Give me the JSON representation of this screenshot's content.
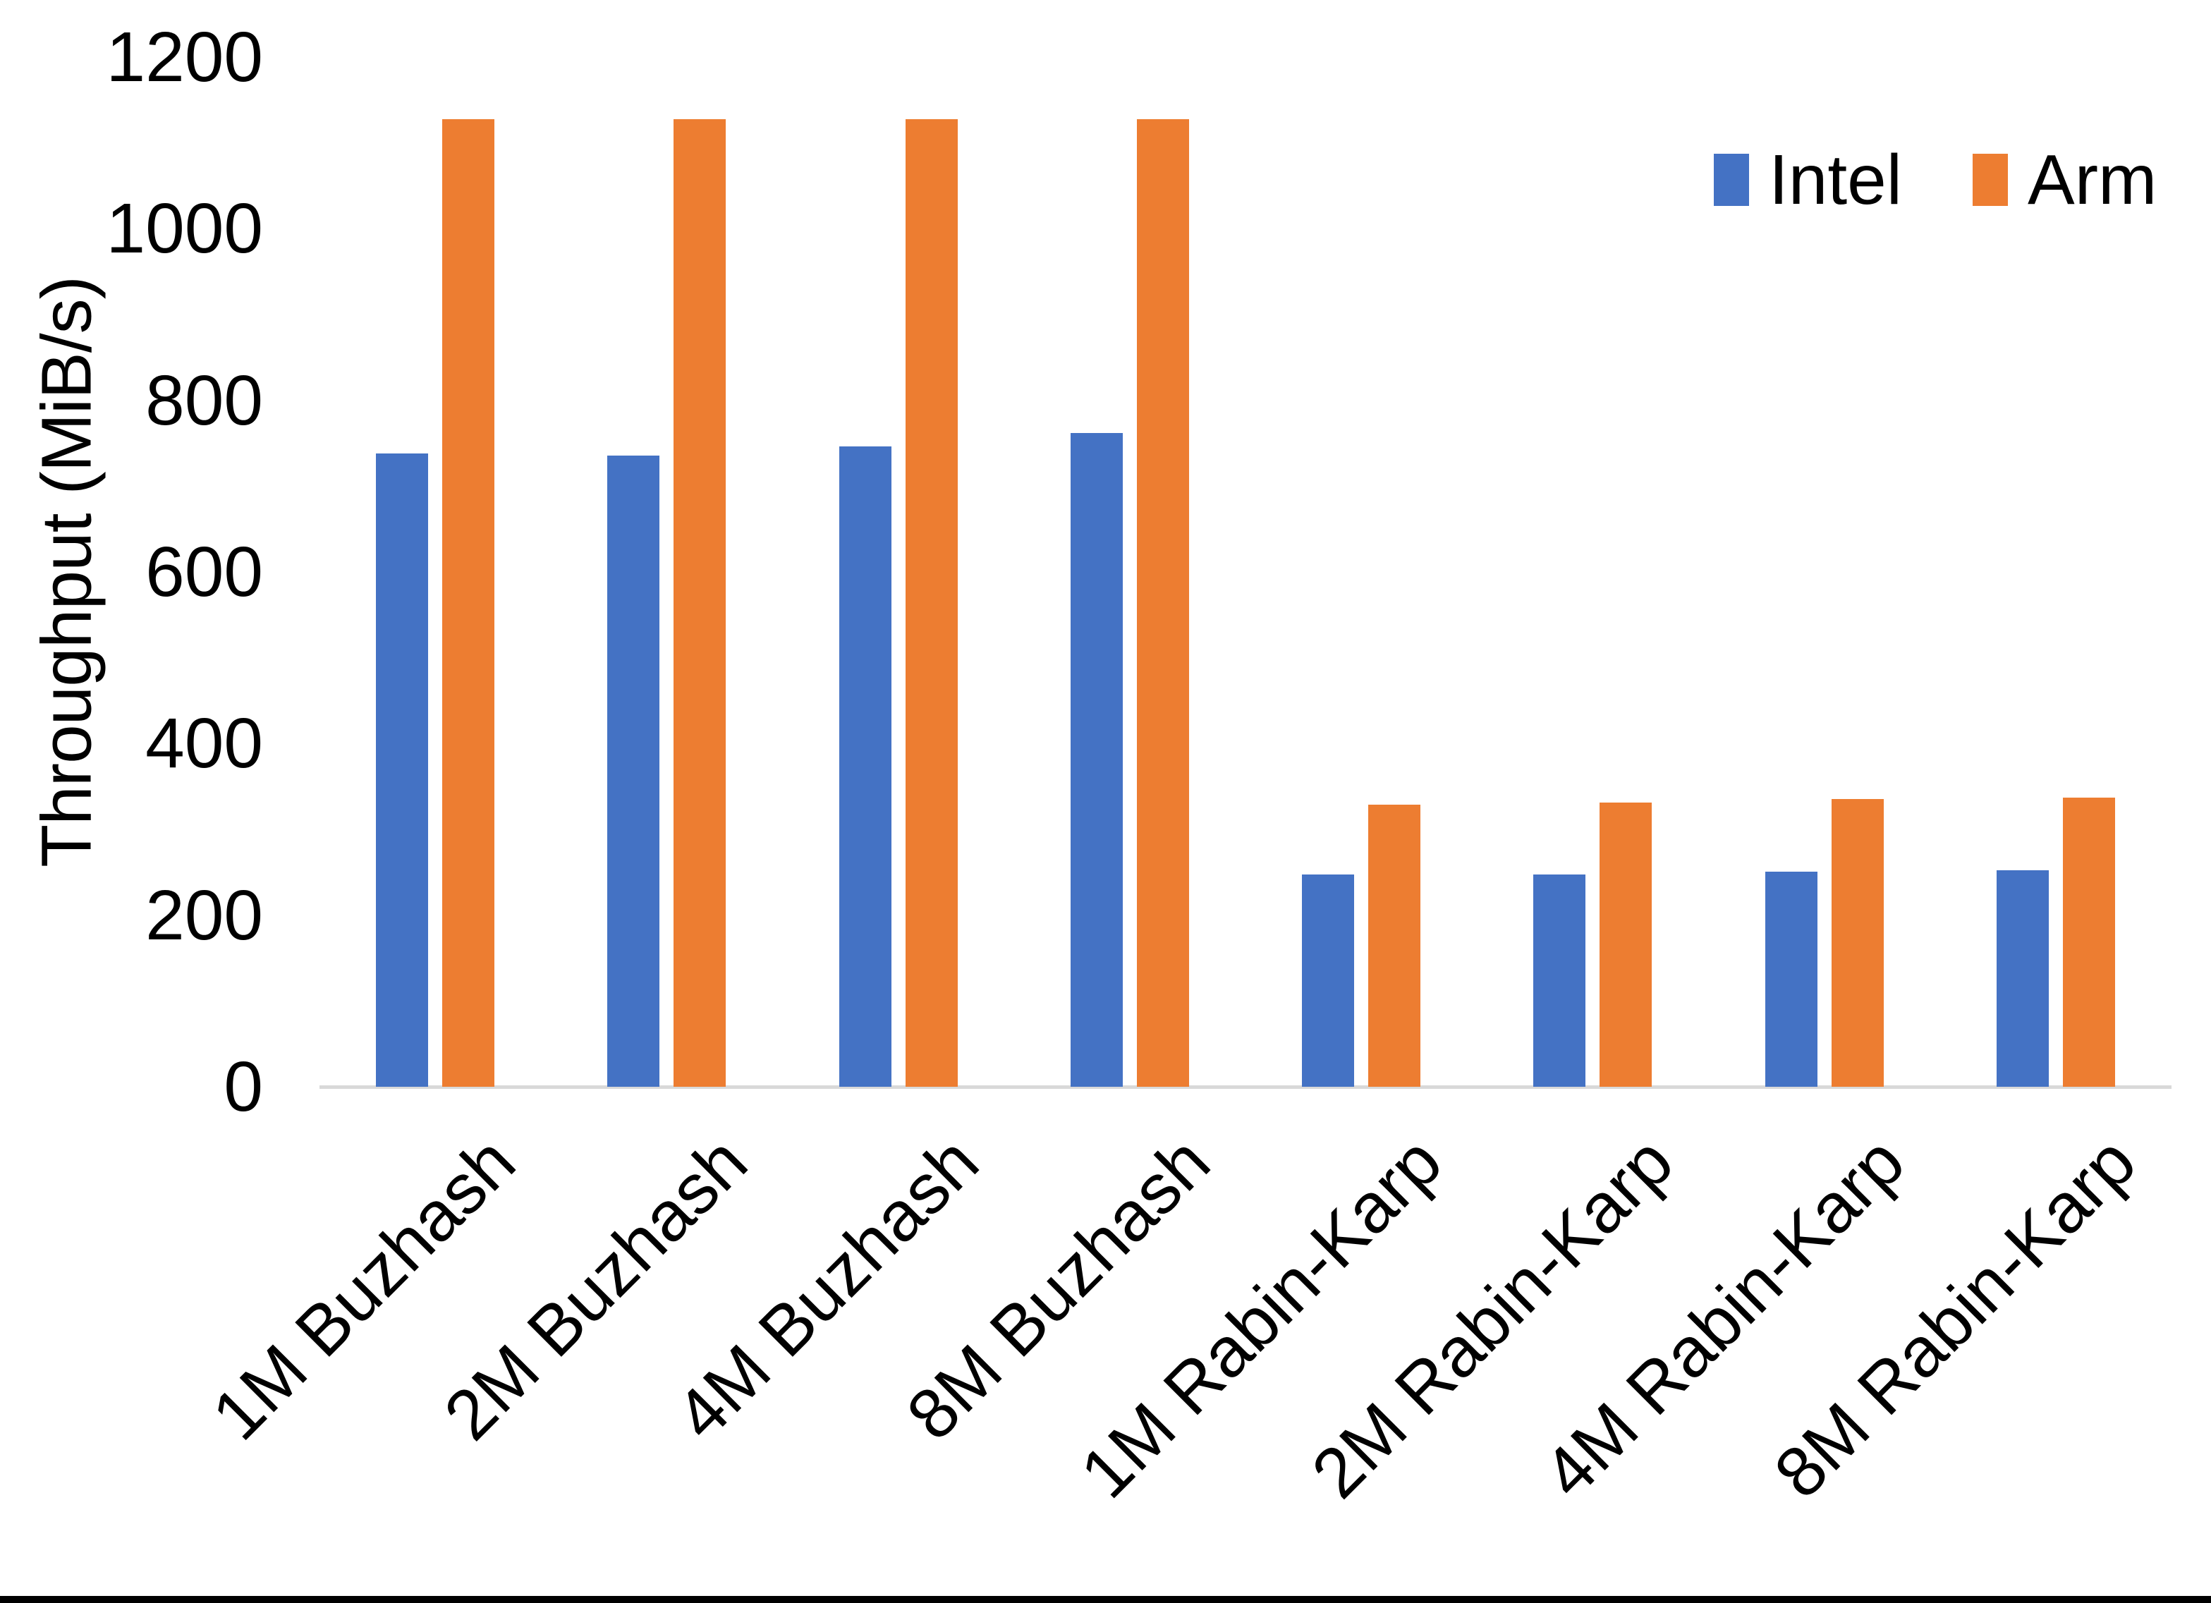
{
  "figure": {
    "background_color": "#ffffff",
    "bottom_border_color": "#000000",
    "axis_line_color": "#d9d9d9"
  },
  "legend": {
    "position": "top-right",
    "items": [
      {
        "label": "Intel",
        "color": "#4472c4"
      },
      {
        "label": "Arm",
        "color": "#ed7d31"
      }
    ]
  },
  "chart_data": {
    "type": "bar",
    "title": "",
    "xlabel": "",
    "ylabel": "Throughput (MiB/s)",
    "categories": [
      "1M Buzhash",
      "2M Buzhash",
      "4M Buzhash",
      "8M Buzhash",
      "1M Rabin-Karp",
      "2M Rabin-Karp",
      "4M Rabin-Karp",
      "8M Rabin-Karp"
    ],
    "series": [
      {
        "name": "Intel",
        "color": "#4472c4",
        "values": [
          738,
          736,
          746,
          762,
          247,
          247,
          251,
          252
        ]
      },
      {
        "name": "Arm",
        "color": "#ed7d31",
        "values": [
          1128,
          1128,
          1128,
          1128,
          329,
          331,
          335,
          337
        ]
      }
    ],
    "ylim": [
      0,
      1200
    ],
    "yticks": [
      0,
      200,
      400,
      600,
      800,
      1000,
      1200
    ],
    "grid": false,
    "legend_position": "top-right"
  }
}
